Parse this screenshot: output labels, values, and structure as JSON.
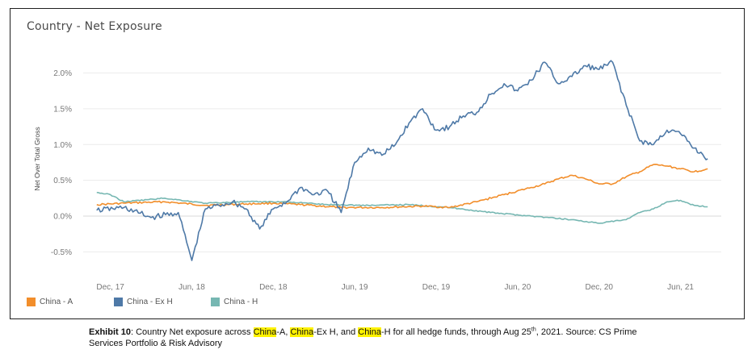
{
  "chart_data": {
    "type": "line",
    "title": "Country - Net Exposure",
    "ylabel": "Net Over Total Gross",
    "xlabel": "",
    "x_ticks": [
      "Dec, 17",
      "Jun, 18",
      "Dec, 18",
      "Jun, 19",
      "Dec, 19",
      "Jun, 20",
      "Dec, 20",
      "Jun, 21"
    ],
    "y_ticks": [
      "-0.5%",
      "0.0%",
      "0.5%",
      "1.0%",
      "1.5%",
      "2.0%"
    ],
    "ylim": [
      -0.8,
      2.4
    ],
    "x_range": [
      "2017-10",
      "2021-09"
    ],
    "grid": "horizontal",
    "legend_position": "bottom-left",
    "series": [
      {
        "name": "China - A",
        "color": "#f28e2b",
        "x": [
          "2017-11",
          "2018-01",
          "2018-04",
          "2018-07",
          "2018-10",
          "2018-12",
          "2019-02",
          "2019-05",
          "2019-08",
          "2019-11",
          "2020-01",
          "2020-03",
          "2020-05",
          "2020-07",
          "2020-08",
          "2020-09",
          "2020-10",
          "2020-11",
          "2020-12",
          "2021-01",
          "2021-02",
          "2021-03",
          "2021-04",
          "2021-05",
          "2021-06",
          "2021-07",
          "2021-08"
        ],
        "values": [
          0.16,
          0.18,
          0.2,
          0.15,
          0.17,
          0.18,
          0.16,
          0.12,
          0.12,
          0.14,
          0.12,
          0.2,
          0.3,
          0.4,
          0.45,
          0.52,
          0.57,
          0.52,
          0.45,
          0.45,
          0.55,
          0.62,
          0.72,
          0.7,
          0.66,
          0.62,
          0.66
        ]
      },
      {
        "name": "China - Ex H",
        "color": "#4e79a7",
        "x": [
          "2017-11",
          "2018-01",
          "2018-03",
          "2018-05",
          "2018-06",
          "2018-07",
          "2018-08",
          "2018-09",
          "2018-10",
          "2018-11",
          "2018-12",
          "2019-01",
          "2019-02",
          "2019-03",
          "2019-04",
          "2019-05",
          "2019-06",
          "2019-07",
          "2019-08",
          "2019-09",
          "2019-10",
          "2019-11",
          "2019-12",
          "2020-01",
          "2020-02",
          "2020-03",
          "2020-04",
          "2020-05",
          "2020-06",
          "2020-07",
          "2020-08",
          "2020-09",
          "2020-10",
          "2020-11",
          "2020-12",
          "2021-01",
          "2021-02",
          "2021-03",
          "2021-04",
          "2021-05",
          "2021-06",
          "2021-07",
          "2021-08"
        ],
        "values": [
          0.08,
          0.12,
          -0.02,
          0.05,
          -0.62,
          0.1,
          0.15,
          0.2,
          0.1,
          -0.18,
          0.1,
          0.2,
          0.4,
          0.3,
          0.35,
          0.05,
          0.75,
          0.95,
          0.85,
          1.0,
          1.3,
          1.5,
          1.2,
          1.25,
          1.4,
          1.45,
          1.7,
          1.85,
          1.75,
          1.9,
          2.15,
          1.85,
          1.95,
          2.1,
          2.05,
          2.15,
          1.55,
          1.05,
          1.0,
          1.2,
          1.15,
          0.95,
          0.8
        ]
      },
      {
        "name": "China - H",
        "color": "#76b7b2",
        "x": [
          "2017-11",
          "2017-12",
          "2018-01",
          "2018-04",
          "2018-07",
          "2018-10",
          "2019-01",
          "2019-04",
          "2019-07",
          "2019-10",
          "2020-01",
          "2020-04",
          "2020-07",
          "2020-10",
          "2020-12",
          "2021-02",
          "2021-03",
          "2021-04",
          "2021-05",
          "2021-06",
          "2021-07",
          "2021-08"
        ],
        "values": [
          0.33,
          0.3,
          0.2,
          0.25,
          0.18,
          0.2,
          0.2,
          0.16,
          0.15,
          0.16,
          0.12,
          0.05,
          0.0,
          -0.05,
          -0.1,
          -0.05,
          0.05,
          0.1,
          0.2,
          0.22,
          0.15,
          0.13
        ]
      }
    ]
  },
  "caption": {
    "label": "Exhibit 10",
    "t1": ": Country Net exposure across ",
    "h1": "China",
    "t2": "-A, ",
    "h2": "China",
    "t3": "-Ex H, and ",
    "h3": "China",
    "t4": "-H for all hedge funds, through Aug 25",
    "sup": "th",
    "t5": ", 2021. Source: CS Prime Services Portfolio & Risk Advisory"
  }
}
